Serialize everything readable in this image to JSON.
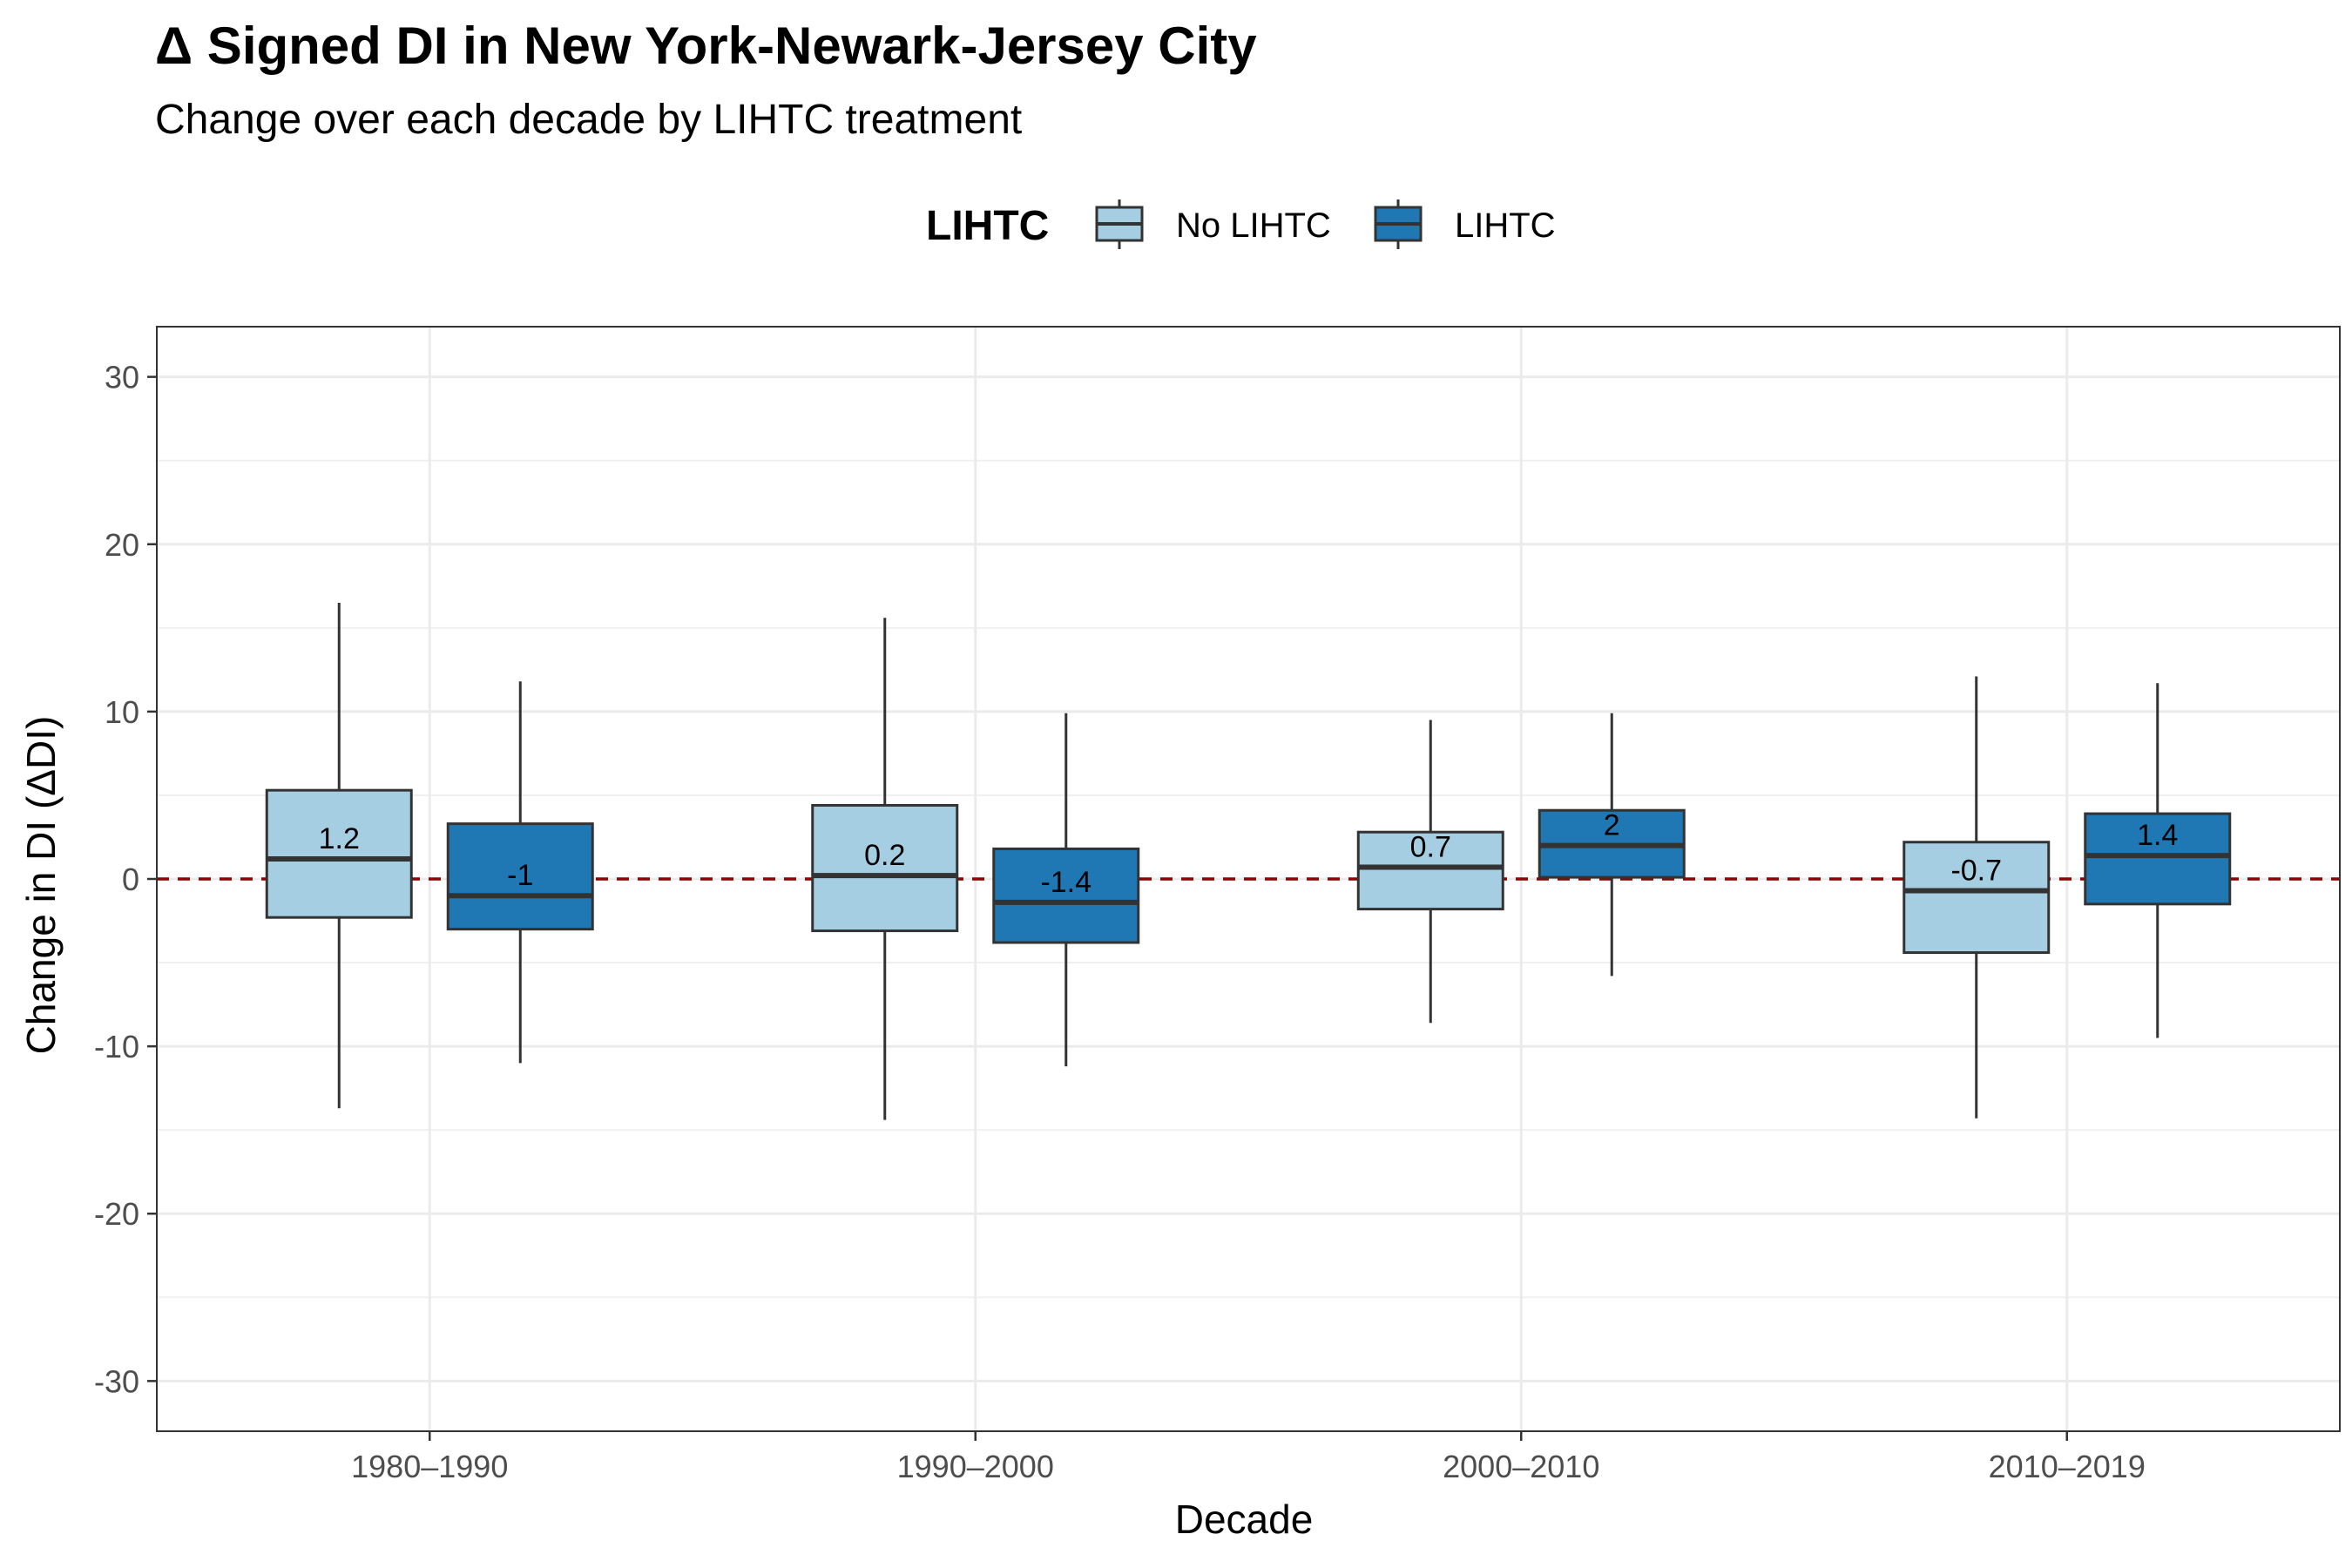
{
  "chart_data": {
    "type": "box",
    "title": "Δ Signed DI in New York-Newark-Jersey City",
    "subtitle": "Change over each decade by LIHTC treatment",
    "xlabel": "Decade",
    "ylabel": "Change in DI (ΔDI)",
    "ylim": [
      -33,
      33
    ],
    "yticks": [
      -30,
      -20,
      -10,
      0,
      10,
      20,
      30
    ],
    "categories": [
      "1980–1990",
      "1990–2000",
      "2000–2010",
      "2010–2019"
    ],
    "legend": {
      "title": "LIHTC",
      "position": "top-center"
    },
    "reference_line": {
      "y": 0,
      "color": "#8b0000",
      "style": "dashed"
    },
    "grid": true,
    "series": [
      {
        "name": "No LIHTC",
        "color": "#a6cee3",
        "boxes": [
          {
            "q1": -2.3,
            "median": 1.2,
            "q3": 5.3,
            "whisker_low": -13.7,
            "whisker_high": 16.5,
            "label": "1.2"
          },
          {
            "q1": -3.1,
            "median": 0.2,
            "q3": 4.4,
            "whisker_low": -14.4,
            "whisker_high": 15.6,
            "label": "0.2"
          },
          {
            "q1": -1.8,
            "median": 0.7,
            "q3": 2.8,
            "whisker_low": -8.6,
            "whisker_high": 9.5,
            "label": "0.7"
          },
          {
            "q1": -4.4,
            "median": -0.7,
            "q3": 2.2,
            "whisker_low": -14.3,
            "whisker_high": 12.1,
            "label": "-0.7"
          }
        ]
      },
      {
        "name": "LIHTC",
        "color": "#1f78b4",
        "boxes": [
          {
            "q1": -3.0,
            "median": -1.0,
            "q3": 3.3,
            "whisker_low": -11.0,
            "whisker_high": 11.8,
            "label": "-1"
          },
          {
            "q1": -3.8,
            "median": -1.4,
            "q3": 1.8,
            "whisker_low": -11.2,
            "whisker_high": 9.9,
            "label": "-1.4"
          },
          {
            "q1": 0.1,
            "median": 2.0,
            "q3": 4.1,
            "whisker_low": -5.8,
            "whisker_high": 9.9,
            "label": "2"
          },
          {
            "q1": -1.5,
            "median": 1.4,
            "q3": 3.9,
            "whisker_low": -9.5,
            "whisker_high": 11.7,
            "label": "1.4"
          }
        ]
      }
    ]
  }
}
